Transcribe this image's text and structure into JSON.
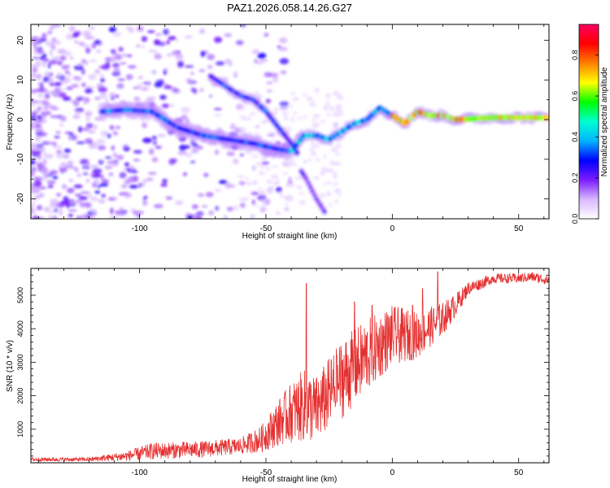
{
  "figure": {
    "title": "PAZ1.2026.058.14.26.G27"
  },
  "chart_data": [
    {
      "type": "heatmap",
      "title": "PAZ1.2026.058.14.26.G27",
      "xlabel": "Height of straight line (km)",
      "ylabel": "Frequency (Hz)",
      "xlim": [
        -143,
        62
      ],
      "ylim": [
        -25,
        24
      ],
      "xticks": [
        -100,
        -50,
        0,
        50
      ],
      "yticks": [
        -20,
        -10,
        0,
        10,
        20
      ],
      "xtick_labels": [
        "-100",
        "-50",
        "0",
        "50"
      ],
      "ytick_labels": [
        "-20",
        "-10",
        "0",
        "10",
        "20"
      ],
      "colorbar": {
        "label": "Normalized spectral amplitude",
        "range": [
          0,
          0.95
        ],
        "ticks": [
          0.0,
          0.2,
          0.4,
          0.6,
          0.8
        ],
        "tick_labels": [
          "0.0",
          "0.2",
          "0.4",
          "0.6",
          "0.8"
        ],
        "colormap": [
          "#ffffff",
          "#d8b8ff",
          "#7a1cff",
          "#0000ff",
          "#00b4ff",
          "#00ffd0",
          "#00ff00",
          "#ffff00",
          "#ff8000",
          "#ff0000",
          "#ff0060"
        ]
      },
      "ridges": [
        {
          "name": "main-trace",
          "points": [
            [
              -115,
              2
            ],
            [
              -105,
              2.5
            ],
            [
              -95,
              2
            ],
            [
              -85,
              -2
            ],
            [
              -75,
              -4
            ],
            [
              -65,
              -5
            ],
            [
              -55,
              -6
            ],
            [
              -45,
              -7.5
            ],
            [
              -40,
              -8
            ],
            [
              -35,
              -4
            ],
            [
              -30,
              -4
            ],
            [
              -25,
              -5
            ],
            [
              -20,
              -3
            ],
            [
              -15,
              -1
            ],
            [
              -10,
              0
            ],
            [
              -5,
              3
            ],
            [
              0,
              1
            ],
            [
              5,
              -1
            ],
            [
              10,
              2
            ],
            [
              15,
              1
            ],
            [
              20,
              1
            ],
            [
              25,
              0
            ],
            [
              40,
              0.5
            ],
            [
              62,
              0.5
            ]
          ]
        },
        {
          "name": "upper-branch",
          "points": [
            [
              -72,
              11
            ],
            [
              -65,
              8
            ],
            [
              -60,
              6
            ],
            [
              -55,
              5
            ],
            [
              -50,
              2
            ],
            [
              -45,
              -2
            ],
            [
              -40,
              -6
            ],
            [
              -37,
              -9
            ]
          ]
        },
        {
          "name": "lower-branch",
          "points": [
            [
              -36,
              -13
            ],
            [
              -34,
              -15
            ],
            [
              -30,
              -20
            ],
            [
              -26,
              -24
            ]
          ]
        }
      ],
      "scatter_region": {
        "x_range": [
          -143,
          -40
        ],
        "y_range": [
          -25,
          24
        ]
      }
    },
    {
      "type": "line",
      "xlabel": "Height of straight line (km)",
      "ylabel": "SNR (10 * v/v)",
      "xlim": [
        -143,
        62
      ],
      "ylim": [
        0,
        5800
      ],
      "xticks": [
        -100,
        -50,
        0,
        50
      ],
      "yticks": [
        1000,
        2000,
        3000,
        4000,
        5000
      ],
      "xtick_labels": [
        "-100",
        "-50",
        "0",
        "50"
      ],
      "ytick_labels": [
        "1000",
        "2000",
        "3000",
        "4000",
        "5000"
      ],
      "color": "#e53030",
      "envelope": {
        "x": [
          -143,
          -120,
          -105,
          -95,
          -75,
          -60,
          -52,
          -45,
          -40,
          -35,
          -30,
          -20,
          -10,
          0,
          10,
          20,
          25,
          30,
          40,
          50,
          55,
          62
        ],
        "median": [
          100,
          100,
          200,
          350,
          400,
          500,
          700,
          1200,
          1500,
          1700,
          1600,
          2500,
          3200,
          3800,
          3800,
          4300,
          4700,
          5200,
          5500,
          5500,
          5550,
          5450
        ],
        "spread": [
          60,
          60,
          150,
          250,
          250,
          250,
          400,
          700,
          900,
          1100,
          1000,
          1200,
          1100,
          900,
          700,
          500,
          350,
          200,
          150,
          150,
          150,
          150
        ]
      },
      "spikes": [
        [
          -34,
          5350
        ],
        [
          -22,
          3200
        ],
        [
          -8,
          4700
        ],
        [
          8,
          4700
        ],
        [
          -15,
          4800
        ],
        [
          12,
          5200
        ],
        [
          18,
          5700
        ]
      ]
    }
  ]
}
